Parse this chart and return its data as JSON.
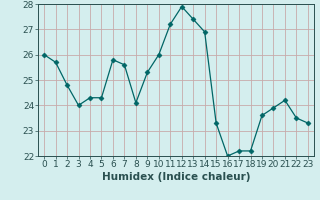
{
  "x": [
    0,
    1,
    2,
    3,
    4,
    5,
    6,
    7,
    8,
    9,
    10,
    11,
    12,
    13,
    14,
    15,
    16,
    17,
    18,
    19,
    20,
    21,
    22,
    23
  ],
  "y": [
    26.0,
    25.7,
    24.8,
    24.0,
    24.3,
    24.3,
    25.8,
    25.6,
    24.1,
    25.3,
    26.0,
    27.2,
    27.9,
    27.4,
    26.9,
    23.3,
    22.0,
    22.2,
    22.2,
    23.6,
    23.9,
    24.2,
    23.5,
    23.3
  ],
  "xlabel": "Humidex (Indice chaleur)",
  "ylim": [
    22,
    28
  ],
  "xlim_min": -0.5,
  "xlim_max": 23.5,
  "yticks": [
    22,
    23,
    24,
    25,
    26,
    27,
    28
  ],
  "xticks": [
    0,
    1,
    2,
    3,
    4,
    5,
    6,
    7,
    8,
    9,
    10,
    11,
    12,
    13,
    14,
    15,
    16,
    17,
    18,
    19,
    20,
    21,
    22,
    23
  ],
  "line_color": "#006666",
  "marker": "D",
  "marker_size": 2.5,
  "bg_color": "#d4eeee",
  "grid_color": "#c8aaaa",
  "xlabel_fontsize": 7.5,
  "tick_fontsize": 6.5,
  "tick_color": "#2a5050",
  "spine_color": "#2a5050"
}
